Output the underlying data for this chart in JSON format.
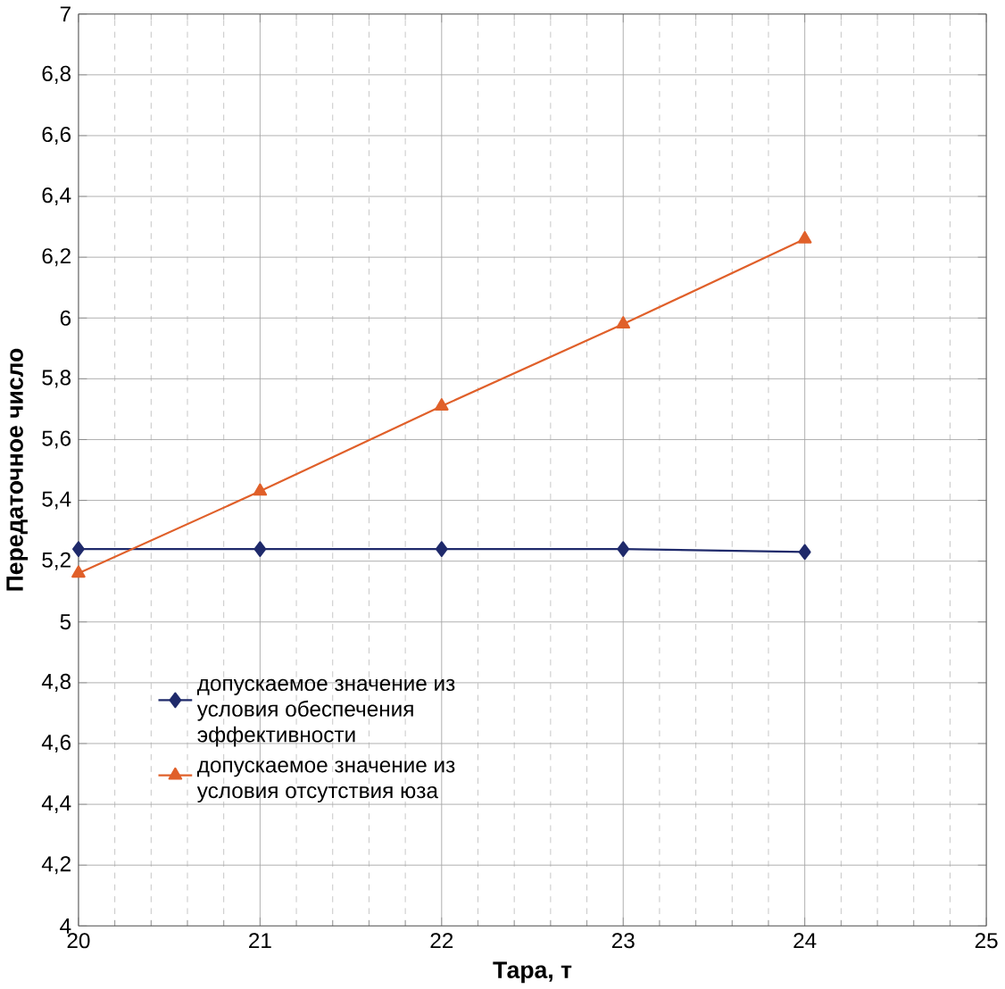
{
  "chart_data": {
    "type": "line",
    "xlabel": "Тара, т",
    "ylabel": "Передаточное число",
    "x": [
      20,
      21,
      22,
      23,
      24
    ],
    "series": [
      {
        "name": "допускаемое значение из условия обеспечения эффективности",
        "color": "#1f2a6b",
        "marker": "diamond",
        "values": [
          5.24,
          5.24,
          5.24,
          5.24,
          5.23
        ]
      },
      {
        "name": "допускаемое значение из условия отсутствия юза",
        "color": "#e0602a",
        "marker": "triangle",
        "values": [
          5.16,
          5.43,
          5.71,
          5.98,
          6.26
        ]
      }
    ],
    "xlim": [
      20,
      25
    ],
    "xticks": [
      20,
      21,
      22,
      23,
      24,
      25
    ],
    "ylim": [
      4,
      7
    ],
    "yticks": [
      4,
      {
        "value": 4.2,
        "label": "4,2"
      },
      {
        "value": 4.4,
        "label": "4,4"
      },
      {
        "value": 4.6,
        "label": "4,6"
      },
      {
        "value": 4.8,
        "label": "4,8"
      },
      5,
      {
        "value": 5.2,
        "label": "5,2"
      },
      {
        "value": 5.4,
        "label": "5,4"
      },
      {
        "value": 5.6,
        "label": "5,6"
      },
      {
        "value": 5.8,
        "label": "5,8"
      },
      6,
      {
        "value": 6.2,
        "label": "6,2"
      },
      {
        "value": 6.4,
        "label": "6,4"
      },
      {
        "value": 6.6,
        "label": "6,6"
      },
      {
        "value": 6.8,
        "label": "6,8"
      },
      7
    ],
    "grid": true,
    "legend": "left",
    "line_style": "solid"
  }
}
